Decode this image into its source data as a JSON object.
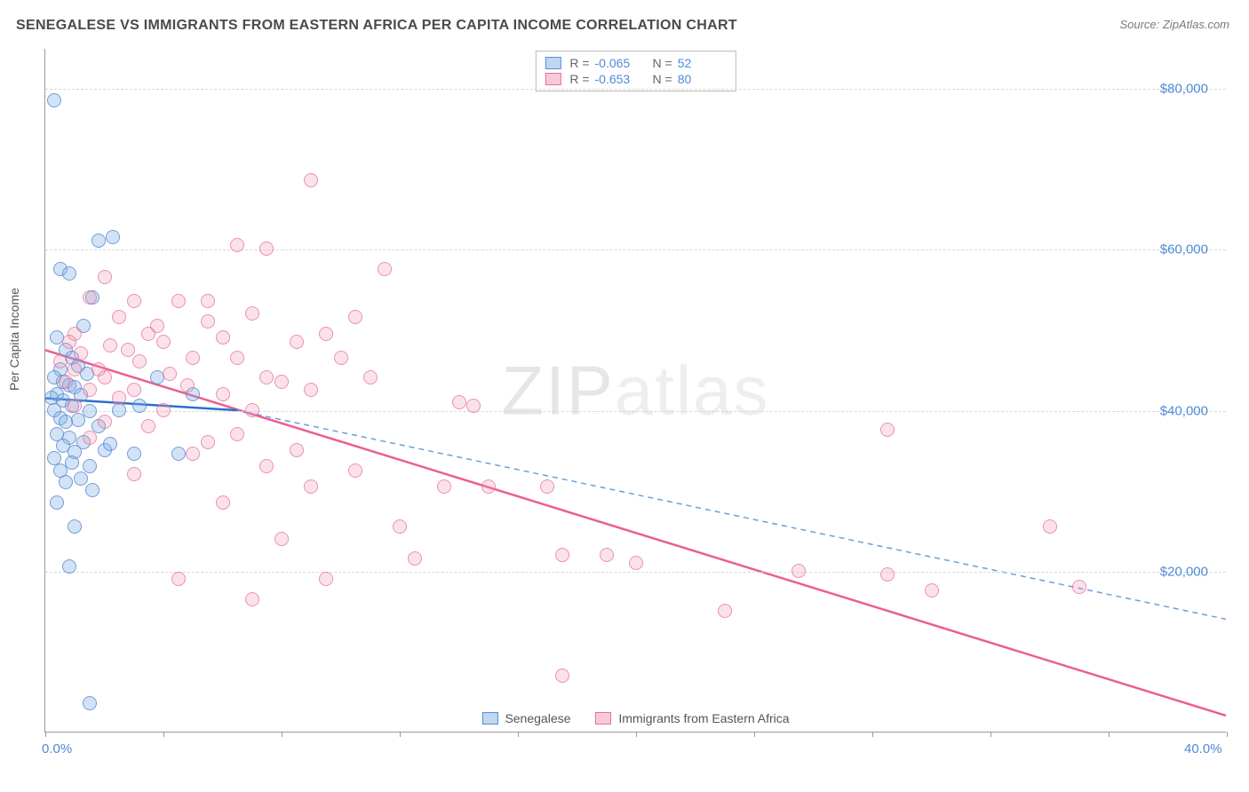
{
  "title": "SENEGALESE VS IMMIGRANTS FROM EASTERN AFRICA PER CAPITA INCOME CORRELATION CHART",
  "source": "Source: ZipAtlas.com",
  "ylabel": "Per Capita Income",
  "watermark_bold": "ZIP",
  "watermark_thin": "atlas",
  "chart": {
    "type": "scatter",
    "xlim": [
      0,
      40
    ],
    "ylim": [
      0,
      85000
    ],
    "xtick_labels": {
      "0": "0.0%",
      "40": "40.0%"
    },
    "xtick_positions": [
      0,
      4,
      8,
      12,
      16,
      20,
      24,
      28,
      32,
      36,
      40
    ],
    "ytick_labels": {
      "20000": "$20,000",
      "40000": "$40,000",
      "60000": "$60,000",
      "80000": "$80,000"
    },
    "grid_y": [
      20000,
      40000,
      60000,
      80000
    ],
    "background_color": "#ffffff",
    "grid_color": "#d8d8d8",
    "axis_color": "#999999",
    "marker_radius": 8,
    "series": [
      {
        "name": "Senegalese",
        "color_fill": "rgba(130,175,230,0.35)",
        "color_stroke": "#5a8cd2",
        "R": "-0.065",
        "N": "52",
        "trend": {
          "x1": 0,
          "y1": 41500,
          "x2": 6.5,
          "y2": 40000,
          "extend_x2": 40,
          "extend_y2": 14000,
          "solid_color": "#2d6fc9",
          "dash_color": "#6a9fd8",
          "width": 2.5
        },
        "points": [
          [
            0.3,
            78500
          ],
          [
            1.8,
            61000
          ],
          [
            2.3,
            61500
          ],
          [
            0.5,
            57500
          ],
          [
            0.8,
            57000
          ],
          [
            1.3,
            50500
          ],
          [
            1.6,
            54000
          ],
          [
            0.4,
            49000
          ],
          [
            0.7,
            47500
          ],
          [
            0.9,
            46500
          ],
          [
            1.1,
            45500
          ],
          [
            0.5,
            45000
          ],
          [
            1.4,
            44500
          ],
          [
            0.3,
            44000
          ],
          [
            0.6,
            43500
          ],
          [
            0.8,
            43000
          ],
          [
            1.0,
            42800
          ],
          [
            0.4,
            42000
          ],
          [
            1.2,
            41800
          ],
          [
            0.2,
            41500
          ],
          [
            0.6,
            41200
          ],
          [
            3.8,
            44000
          ],
          [
            5.0,
            42000
          ],
          [
            0.9,
            40500
          ],
          [
            0.3,
            40000
          ],
          [
            1.5,
            39800
          ],
          [
            0.5,
            39000
          ],
          [
            1.1,
            38800
          ],
          [
            0.7,
            38500
          ],
          [
            1.8,
            38000
          ],
          [
            2.5,
            40000
          ],
          [
            3.2,
            40500
          ],
          [
            0.4,
            37000
          ],
          [
            0.8,
            36500
          ],
          [
            1.3,
            36000
          ],
          [
            0.6,
            35500
          ],
          [
            2.0,
            35000
          ],
          [
            1.0,
            34800
          ],
          [
            0.3,
            34000
          ],
          [
            0.9,
            33500
          ],
          [
            1.5,
            33000
          ],
          [
            0.5,
            32500
          ],
          [
            3.0,
            34500
          ],
          [
            1.2,
            31500
          ],
          [
            0.7,
            31000
          ],
          [
            2.2,
            35800
          ],
          [
            1.6,
            30000
          ],
          [
            0.4,
            28500
          ],
          [
            1.0,
            25500
          ],
          [
            0.8,
            20500
          ],
          [
            1.5,
            3500
          ],
          [
            4.5,
            34500
          ]
        ]
      },
      {
        "name": "Immigants from Eastern Africa",
        "legend_label": "Immigrants from Eastern Africa",
        "color_fill": "rgba(240,150,180,0.28)",
        "color_stroke": "#e66e96",
        "R": "-0.653",
        "N": "80",
        "trend": {
          "x1": 0,
          "y1": 47500,
          "x2": 40,
          "y2": 2000,
          "solid_color": "#ec5f8d",
          "width": 2.5
        },
        "points": [
          [
            9.0,
            68500
          ],
          [
            6.5,
            60500
          ],
          [
            7.5,
            60000
          ],
          [
            11.5,
            57500
          ],
          [
            2.0,
            56500
          ],
          [
            1.5,
            54000
          ],
          [
            3.0,
            53500
          ],
          [
            4.5,
            53500
          ],
          [
            5.5,
            53500
          ],
          [
            2.5,
            51500
          ],
          [
            7.0,
            52000
          ],
          [
            10.5,
            51500
          ],
          [
            1.0,
            49500
          ],
          [
            3.5,
            49500
          ],
          [
            6.0,
            49000
          ],
          [
            0.8,
            48500
          ],
          [
            2.2,
            48000
          ],
          [
            4.0,
            48500
          ],
          [
            8.5,
            48500
          ],
          [
            9.5,
            49500
          ],
          [
            1.2,
            47000
          ],
          [
            2.8,
            47500
          ],
          [
            5.0,
            46500
          ],
          [
            0.5,
            46000
          ],
          [
            3.2,
            46000
          ],
          [
            6.5,
            46500
          ],
          [
            10.0,
            46500
          ],
          [
            1.8,
            45000
          ],
          [
            1.0,
            45000
          ],
          [
            4.2,
            44500
          ],
          [
            7.5,
            44000
          ],
          [
            2.0,
            44000
          ],
          [
            0.7,
            43500
          ],
          [
            4.8,
            43000
          ],
          [
            8.0,
            43500
          ],
          [
            1.5,
            42500
          ],
          [
            3.0,
            42500
          ],
          [
            6.0,
            42000
          ],
          [
            9.0,
            42500
          ],
          [
            2.5,
            41500
          ],
          [
            5.5,
            36000
          ],
          [
            1.0,
            40500
          ],
          [
            4.0,
            40000
          ],
          [
            7.0,
            40000
          ],
          [
            14.0,
            41000
          ],
          [
            2.0,
            38500
          ],
          [
            3.5,
            38000
          ],
          [
            8.5,
            35000
          ],
          [
            6.5,
            37000
          ],
          [
            28.5,
            37500
          ],
          [
            1.5,
            36500
          ],
          [
            5.0,
            34500
          ],
          [
            7.5,
            33000
          ],
          [
            10.5,
            32500
          ],
          [
            3.0,
            32000
          ],
          [
            9.0,
            30500
          ],
          [
            13.5,
            30500
          ],
          [
            15.0,
            30500
          ],
          [
            17.0,
            30500
          ],
          [
            6.0,
            28500
          ],
          [
            12.0,
            25500
          ],
          [
            34.0,
            25500
          ],
          [
            8.0,
            24000
          ],
          [
            17.5,
            22000
          ],
          [
            19.0,
            22000
          ],
          [
            4.5,
            19000
          ],
          [
            12.5,
            21500
          ],
          [
            25.5,
            20000
          ],
          [
            28.5,
            19500
          ],
          [
            35.0,
            18000
          ],
          [
            23.0,
            15000
          ],
          [
            9.5,
            19000
          ],
          [
            30.0,
            17500
          ],
          [
            7.0,
            16500
          ],
          [
            17.5,
            7000
          ],
          [
            20.0,
            21000
          ],
          [
            14.5,
            40500
          ],
          [
            11.0,
            44000
          ],
          [
            5.5,
            51000
          ],
          [
            3.8,
            50500
          ]
        ]
      }
    ]
  },
  "legend": {
    "items": [
      {
        "swatch": "blue",
        "label": "Senegalese"
      },
      {
        "swatch": "pink",
        "label": "Immigrants from Eastern Africa"
      }
    ]
  },
  "colors": {
    "tick_text": "#4e8bd6"
  }
}
